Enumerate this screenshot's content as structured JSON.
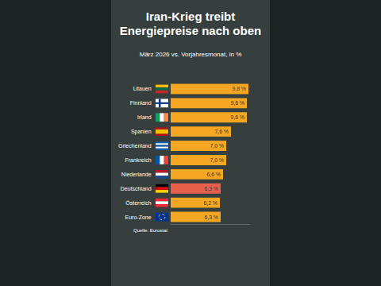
{
  "chart_data": {
    "type": "bar",
    "orientation": "horizontal",
    "title": "Iran-Krieg treibt Energiepreise nach oben",
    "subtitle": "März 2026 vs. Vorjahresmonat, in %",
    "source": "Quelle: Eurostat",
    "categories": [
      "Litauen",
      "Finnland",
      "Irland",
      "Spanien",
      "Griechenland",
      "Frankreich",
      "Niederlande",
      "Deutschland",
      "Österreich",
      "Euro-Zone"
    ],
    "values": [
      9.8,
      9.6,
      9.6,
      7.6,
      7.0,
      7.0,
      6.6,
      6.3,
      6.2,
      6.3
    ],
    "value_labels": [
      "9,8 %",
      "9,6 %",
      "9,6 %",
      "7,6 %",
      "7,0 %",
      "7,0 %",
      "6,6 %",
      "6,3 %",
      "6,2 %",
      "6,3 %"
    ],
    "colors": [
      "#f5a623",
      "#f5a623",
      "#f5a623",
      "#f5a623",
      "#f5a623",
      "#f5a623",
      "#f5a623",
      "#e8604c",
      "#f5a623",
      "#f5a623"
    ],
    "xlim": [
      0,
      10
    ],
    "xticks": [],
    "tick_labels": "y",
    "data_labels": true,
    "grid": false
  }
}
